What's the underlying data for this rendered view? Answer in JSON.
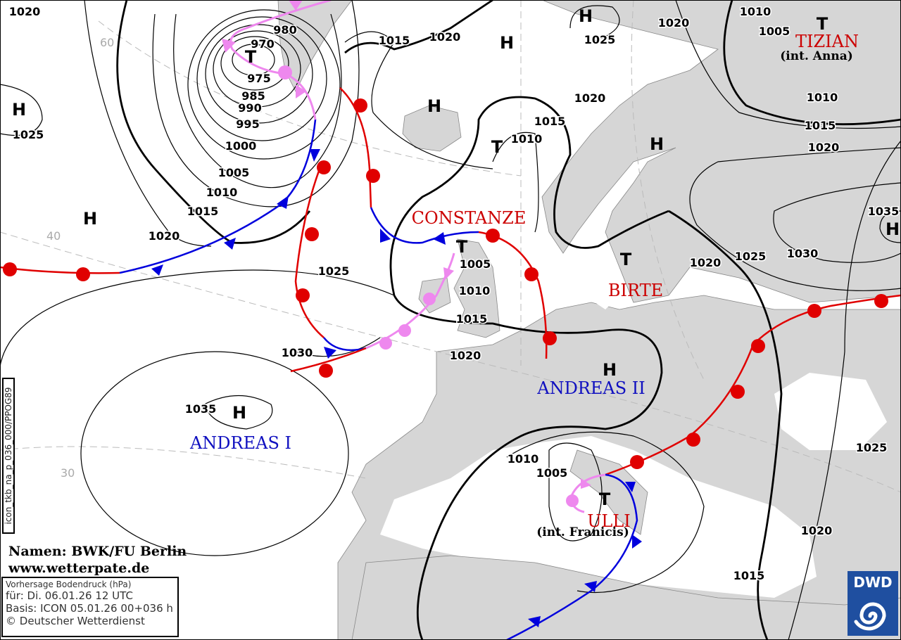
{
  "map": {
    "isobar_labels": [
      "1020",
      "980",
      "970",
      "975",
      "985",
      "990",
      "995",
      "1000",
      "1005",
      "1010",
      "1015",
      "1020",
      "1025",
      "1015",
      "1020",
      "1020",
      "1025",
      "1010",
      "1005",
      "1010",
      "1015",
      "1020",
      "1020",
      "1015",
      "1010",
      "1025",
      "1005",
      "1010",
      "1015",
      "1020",
      "1030",
      "1035",
      "1035",
      "1030",
      "1025",
      "1020",
      "1025",
      "1010",
      "1005",
      "1020",
      "1015"
    ],
    "high_symbol": "H",
    "low_symbol": "T",
    "grid_labels": [
      "40",
      "30",
      "60"
    ],
    "names": {
      "tizian": "TIZIAN",
      "tizian_int": "(int. Anna)",
      "constanze": "CONSTANZE",
      "birte": "BIRTE",
      "andreas_ii": "ANDREAS II",
      "andreas_i": "ANDREAS I",
      "ulli": "ULLI",
      "ulli_int": "(int. Franicis)"
    },
    "colors": {
      "warm_front": "#e00000",
      "cold_front": "#0000dd",
      "occlusion": "#ee88ee",
      "land": "#d6d6d6",
      "sea": "#ffffff",
      "name_red": "#cc0000",
      "name_blue": "#1010c0",
      "dwd_blue": "#1f4fa0"
    }
  },
  "credit": {
    "line1": "Namen: BWK/FU Berlin",
    "line2": "www.wetterpate.de"
  },
  "info": {
    "title": "Vorhersage Bodendruck (hPa)",
    "valid": "für:  Di. 06.01.26  12 UTC",
    "basis": "Basis: ICON  05.01.26 00+036 h",
    "copyright": "© Deutscher Wetterdienst"
  },
  "product_code": "icon_tkb_na_p_036_000/PPOG89",
  "logo": {
    "text": "DWD"
  }
}
